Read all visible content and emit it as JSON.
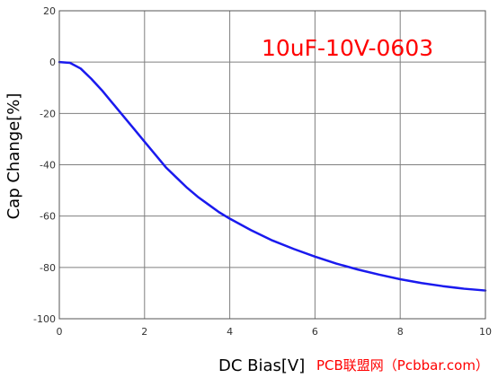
{
  "chart_data": {
    "type": "line",
    "title": "10uF-10V-0603",
    "xlabel": "DC Bias[V]",
    "ylabel": "Cap Change[%]",
    "xlim": [
      0,
      10
    ],
    "ylim": [
      -100,
      20
    ],
    "x_ticks": [
      "0",
      "2",
      "4",
      "6",
      "8",
      "10"
    ],
    "y_ticks": [
      "20",
      "0",
      "-20",
      "-40",
      "-60",
      "-80",
      "-100"
    ],
    "grid": true,
    "legend": "none",
    "series": [
      {
        "x": [
          0,
          0.25,
          0.5,
          0.75,
          1.0,
          1.25,
          1.5,
          1.75,
          2.0,
          2.25,
          2.5,
          2.75,
          3.0,
          3.25,
          3.5,
          3.75,
          4.0,
          4.5,
          5.0,
          5.5,
          6.0,
          6.5,
          7.0,
          7.5,
          8.0,
          8.5,
          9.0,
          9.5,
          10.0
        ],
        "y": [
          0,
          -0.3,
          -2.5,
          -6.5,
          -11,
          -16,
          -21,
          -26,
          -31,
          -36,
          -41,
          -45,
          -49,
          -52.5,
          -55.5,
          -58.5,
          -61,
          -65.5,
          -69.5,
          -72.8,
          -75.8,
          -78.5,
          -80.8,
          -82.8,
          -84.6,
          -86.1,
          -87.3,
          -88.3,
          -89
        ]
      }
    ],
    "colors": {
      "series": "#1a1aee",
      "grid": "#7f7f7f",
      "title": "#ff0000"
    }
  },
  "watermark": {
    "text": "PCB联盟网（Pcbbar.com）",
    "color": "#ff0000"
  }
}
